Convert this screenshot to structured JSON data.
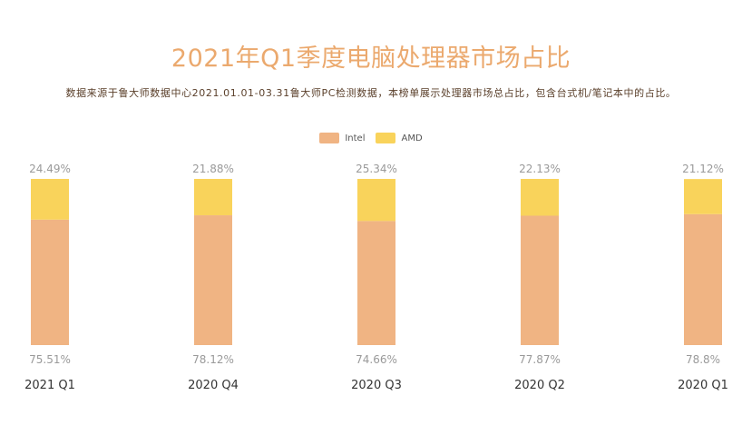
{
  "chart_data": {
    "type": "bar",
    "stacked": true,
    "title": "2021年Q1季度电脑处理器市场占比",
    "subtitle": "数据来源于鲁大师数据中心2021.01.01-03.31鲁大师PC检测数据，本榜单展示处理器市场总占比，包含台式机/笔记本中的占比。",
    "categories": [
      "2021 Q1",
      "2020 Q4",
      "2020 Q3",
      "2020 Q2",
      "2020 Q1"
    ],
    "series": [
      {
        "name": "Intel",
        "color": "#f0b483",
        "values": [
          75.51,
          78.12,
          74.66,
          77.87,
          78.8
        ],
        "labels": [
          "75.51%",
          "78.12%",
          "74.66%",
          "77.87%",
          "78.8%"
        ]
      },
      {
        "name": "AMD",
        "color": "#f9d35b",
        "values": [
          24.49,
          21.88,
          25.34,
          22.13,
          21.12
        ],
        "labels": [
          "24.49%",
          "21.88%",
          "25.34%",
          "22.13%",
          "21.12%"
        ]
      }
    ],
    "ylim": [
      0,
      100
    ],
    "legend": "top-center",
    "grid": false
  }
}
